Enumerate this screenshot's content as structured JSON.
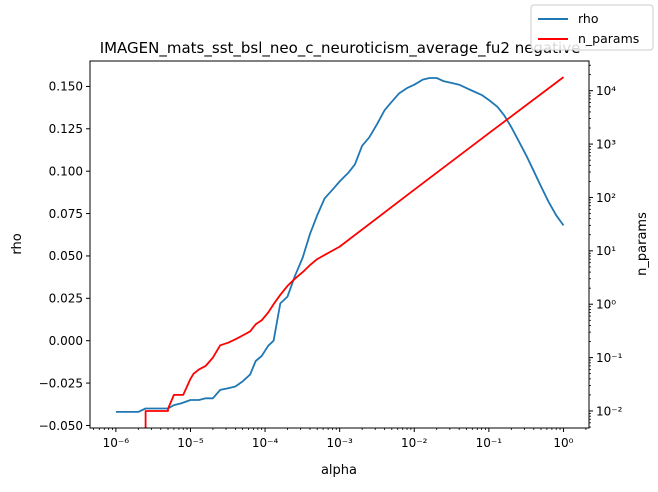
{
  "chart_data": {
    "type": "line",
    "title": "IMAGEN_mats_sst_bsl_neo_c_neuroticism_average_fu2 negative",
    "xlabel": "alpha",
    "ylabel": "rho",
    "y2label": "n_params",
    "xscale": "log",
    "y2scale": "log",
    "xlim": [
      4.5e-07,
      2.2
    ],
    "ylim": [
      -0.0515,
      0.165
    ],
    "y2lim": [
      0.0048,
      36000
    ],
    "x_tick_values": [
      1e-06,
      1e-05,
      0.0001,
      0.001,
      0.01,
      0.1,
      1
    ],
    "x_tick_labels": [
      "10⁻⁶",
      "10⁻⁵",
      "10⁻⁴",
      "10⁻³",
      "10⁻²",
      "10⁻¹",
      "10⁰"
    ],
    "y_tick_values": [
      -0.05,
      -0.025,
      0,
      0.025,
      0.05,
      0.075,
      0.1,
      0.125,
      0.15
    ],
    "y_tick_labels": [
      "−0.050",
      "−0.025",
      "0.000",
      "0.025",
      "0.050",
      "0.075",
      "0.100",
      "0.125",
      "0.150"
    ],
    "y2_tick_values": [
      0.01,
      0.1,
      1,
      10,
      100,
      1000,
      10000
    ],
    "y2_tick_labels": [
      "10⁻²",
      "10⁻¹",
      "10⁰",
      "10¹",
      "10²",
      "10³",
      "10⁴"
    ],
    "grid": false,
    "legend_position": "top-right",
    "series": [
      {
        "name": "rho",
        "axis": "left",
        "color": "#1f77b4",
        "x": [
          1e-06,
          2e-06,
          2.5e-06,
          4e-06,
          5e-06,
          6e-06,
          7.5e-06,
          1e-05,
          1.3e-05,
          1.6e-05,
          2e-05,
          2.5e-05,
          3.2e-05,
          4e-05,
          5e-05,
          6.3e-05,
          7.5e-05,
          9e-05,
          0.00011,
          0.00013,
          0.00016,
          0.0002,
          0.00025,
          0.00032,
          0.0004,
          0.0005,
          0.00063,
          0.0008,
          0.001,
          0.0013,
          0.0016,
          0.002,
          0.0025,
          0.0032,
          0.004,
          0.005,
          0.0063,
          0.008,
          0.01,
          0.013,
          0.016,
          0.02,
          0.025,
          0.032,
          0.04,
          0.05,
          0.063,
          0.08,
          0.1,
          0.13,
          0.16,
          0.2,
          0.25,
          0.32,
          0.4,
          0.5,
          0.63,
          0.8,
          1.0
        ],
        "y": [
          -0.042,
          -0.042,
          -0.04,
          -0.04,
          -0.04,
          -0.038,
          -0.037,
          -0.035,
          -0.035,
          -0.034,
          -0.034,
          -0.029,
          -0.028,
          -0.027,
          -0.024,
          -0.02,
          -0.012,
          -0.009,
          -0.003,
          0.0,
          0.022,
          0.026,
          0.038,
          0.049,
          0.063,
          0.074,
          0.084,
          0.089,
          0.094,
          0.099,
          0.104,
          0.115,
          0.12,
          0.128,
          0.136,
          0.141,
          0.146,
          0.149,
          0.151,
          0.154,
          0.155,
          0.155,
          0.153,
          0.152,
          0.151,
          0.149,
          0.147,
          0.145,
          0.142,
          0.138,
          0.133,
          0.126,
          0.118,
          0.109,
          0.1,
          0.091,
          0.082,
          0.074,
          0.068
        ]
      },
      {
        "name": "n_params",
        "axis": "right",
        "color": "#ff0000",
        "x": [
          2.5e-06,
          2.5e-06,
          3e-06,
          5e-06,
          5e-06,
          6e-06,
          7e-06,
          8e-06,
          1e-05,
          1.1e-05,
          1.3e-05,
          1.6e-05,
          2e-05,
          2.5e-05,
          3.2e-05,
          4e-05,
          5e-05,
          6.3e-05,
          7.5e-05,
          9e-05,
          0.00011,
          0.00013,
          0.00016,
          0.0002,
          0.00025,
          0.00032,
          0.0004,
          0.0005,
          0.001,
          0.01,
          0.1,
          1.0
        ],
        "y": [
          0.004,
          0.01,
          0.01,
          0.01,
          0.011,
          0.02,
          0.02,
          0.02,
          0.04,
          0.05,
          0.06,
          0.07,
          0.1,
          0.17,
          0.19,
          0.22,
          0.26,
          0.31,
          0.42,
          0.5,
          0.7,
          1.0,
          1.5,
          2.2,
          3.0,
          4.0,
          5.4,
          7.0,
          12.0,
          140.0,
          1600.0,
          18000.0
        ]
      }
    ]
  }
}
